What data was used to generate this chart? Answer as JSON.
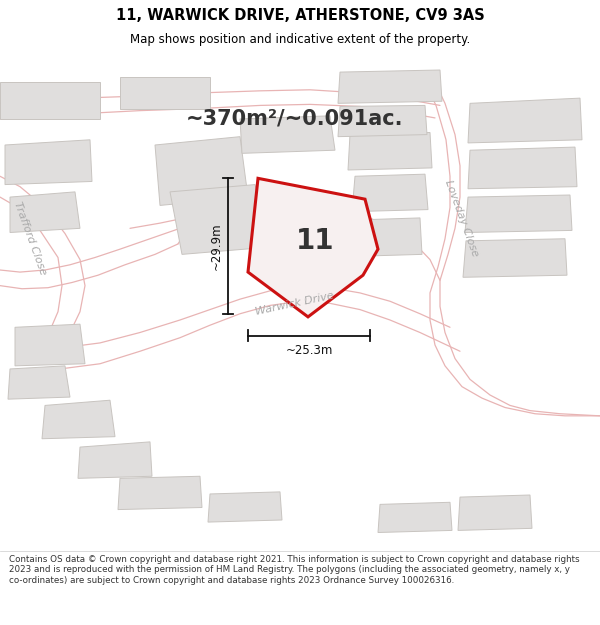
{
  "title": "11, WARWICK DRIVE, ATHERSTONE, CV9 3AS",
  "subtitle": "Map shows position and indicative extent of the property.",
  "area_text": "~370m²/~0.091ac.",
  "number_label": "11",
  "dim1_label": "~29.9m",
  "dim2_label": "~25.3m",
  "road_label1": "Warwick Drive",
  "road_label2": "Loveday Close",
  "road_label3": "Trafford Close",
  "footer": "Contains OS data © Crown copyright and database right 2021. This information is subject to Crown copyright and database rights 2023 and is reproduced with the permission of HM Land Registry. The polygons (including the associated geometry, namely x, y co-ordinates) are subject to Crown copyright and database rights 2023 Ordnance Survey 100026316.",
  "map_bg": "#f7f5f3",
  "block_color": "#e0dedd",
  "block_edge": "#c8c4c0",
  "road_line_color": "#e8b4b4",
  "plot_fill": "#f7f0f0",
  "plot_edge": "#cc1111",
  "dim_color": "#111111",
  "label_color": "#aaaaaa",
  "area_color": "#333333"
}
